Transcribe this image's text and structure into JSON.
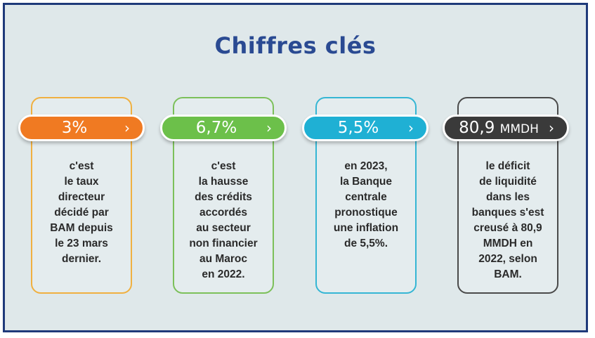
{
  "title": "Chiffres clés",
  "cards": [
    {
      "value": "3%",
      "color": "#f07a22",
      "border_color": "#f0b040",
      "lines": [
        "c'est",
        "le taux",
        "directeur",
        "décidé par",
        "BAM depuis",
        "le 23 mars",
        "dernier."
      ]
    },
    {
      "value": "6,7%",
      "color": "#6cc04a",
      "border_color": "#7cc05a",
      "lines": [
        "c'est",
        "la hausse",
        "des crédits",
        "accordés",
        "au secteur",
        "non financier",
        "au Maroc",
        "en 2022."
      ]
    },
    {
      "value": "5,5%",
      "color": "#1fb0d4",
      "border_color": "#35b6d4",
      "lines": [
        "en 2023,",
        "la Banque",
        "centrale",
        "pronostique",
        "une inflation",
        "de 5,5%."
      ]
    },
    {
      "value": "80,9",
      "unit": "MMDH",
      "color": "#3a3a3a",
      "border_color": "#4a4a4a",
      "lines": [
        "le déficit",
        "de liquidité",
        "dans les",
        "banques s'est",
        "creusé à 80,9",
        "MMDH en",
        "2022, selon",
        "BAM."
      ]
    }
  ],
  "chevron": "›"
}
